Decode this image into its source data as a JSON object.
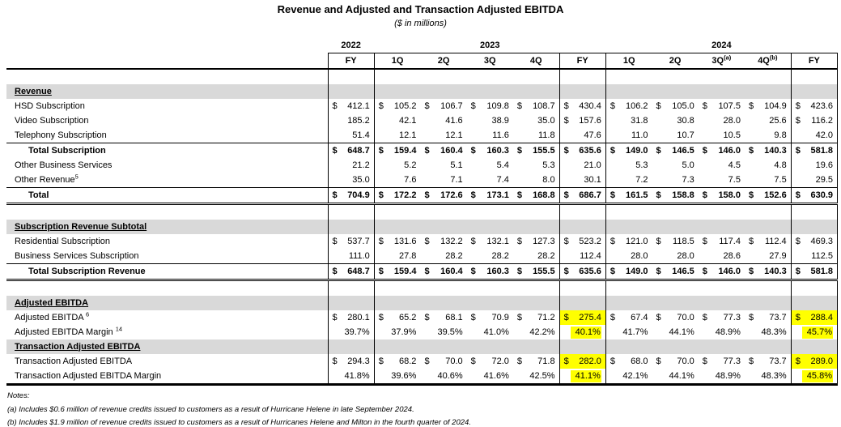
{
  "title": "Revenue and Adjusted and Transaction Adjusted EBITDA",
  "subtitle": "($ in millions)",
  "colors": {
    "section_band": "#d9d9d9",
    "highlight": "#ffff00"
  },
  "table": {
    "year_groups": [
      {
        "label": "2022",
        "span": 1
      },
      {
        "label": "2023",
        "span": 5
      },
      {
        "label": "2024",
        "span": 5
      }
    ],
    "quarter_headers": [
      {
        "label": "FY",
        "sup": ""
      },
      {
        "label": "1Q",
        "sup": ""
      },
      {
        "label": "2Q",
        "sup": ""
      },
      {
        "label": "3Q",
        "sup": ""
      },
      {
        "label": "4Q",
        "sup": ""
      },
      {
        "label": "FY",
        "sup": ""
      },
      {
        "label": "1Q",
        "sup": ""
      },
      {
        "label": "2Q",
        "sup": ""
      },
      {
        "label": "3Q",
        "sup": "(a)"
      },
      {
        "label": "4Q",
        "sup": "(b)"
      },
      {
        "label": "FY",
        "sup": ""
      }
    ],
    "rows": [
      {
        "type": "spacer"
      },
      {
        "type": "section",
        "label": "Revenue"
      },
      {
        "type": "data",
        "label": "HSD Subscription",
        "dollar": [
          1,
          1,
          1,
          1,
          1,
          1,
          1,
          1,
          1,
          1,
          1
        ],
        "values": [
          "412.1",
          "105.2",
          "106.7",
          "109.8",
          "108.7",
          "430.4",
          "106.2",
          "105.0",
          "107.5",
          "104.9",
          "423.6"
        ]
      },
      {
        "type": "data",
        "label": "Video Subscription",
        "dollar": [
          0,
          0,
          0,
          0,
          0,
          1,
          0,
          0,
          0,
          0,
          1
        ],
        "values": [
          "185.2",
          "42.1",
          "41.6",
          "38.9",
          "35.0",
          "157.6",
          "31.8",
          "30.8",
          "28.0",
          "25.6",
          "116.2"
        ]
      },
      {
        "type": "data",
        "label": "Telephony Subscription",
        "dollar": [
          0,
          0,
          0,
          0,
          0,
          0,
          0,
          0,
          0,
          0,
          0
        ],
        "values": [
          "51.4",
          "12.1",
          "12.1",
          "11.6",
          "11.8",
          "47.6",
          "11.0",
          "10.7",
          "10.5",
          "9.8",
          "42.0"
        ]
      },
      {
        "type": "data",
        "label": "Total Subscription",
        "indent": true,
        "bold": true,
        "border_top": true,
        "dollar": [
          1,
          1,
          1,
          1,
          1,
          1,
          1,
          1,
          1,
          1,
          1
        ],
        "values": [
          "648.7",
          "159.4",
          "160.4",
          "160.3",
          "155.5",
          "635.6",
          "149.0",
          "146.5",
          "146.0",
          "140.3",
          "581.8"
        ]
      },
      {
        "type": "data",
        "label": "Other Business Services",
        "dollar": [
          0,
          0,
          0,
          0,
          0,
          0,
          0,
          0,
          0,
          0,
          0
        ],
        "values": [
          "21.2",
          "5.2",
          "5.1",
          "5.4",
          "5.3",
          "21.0",
          "5.3",
          "5.0",
          "4.5",
          "4.8",
          "19.6"
        ]
      },
      {
        "type": "data",
        "label": "Other Revenue",
        "sup": "5",
        "dollar": [
          0,
          0,
          0,
          0,
          0,
          0,
          0,
          0,
          0,
          0,
          0
        ],
        "values": [
          "35.0",
          "7.6",
          "7.1",
          "7.4",
          "8.0",
          "30.1",
          "7.2",
          "7.3",
          "7.5",
          "7.5",
          "29.5"
        ]
      },
      {
        "type": "data",
        "label": "Total",
        "indent": true,
        "bold": true,
        "border_top": true,
        "border_bottom": "double",
        "dollar": [
          1,
          1,
          1,
          1,
          1,
          1,
          1,
          1,
          1,
          1,
          1
        ],
        "values": [
          "704.9",
          "172.2",
          "172.6",
          "173.1",
          "168.8",
          "686.7",
          "161.5",
          "158.8",
          "158.0",
          "152.6",
          "630.9"
        ]
      },
      {
        "type": "spacer"
      },
      {
        "type": "section",
        "label": "Subscription Revenue Subtotal"
      },
      {
        "type": "data",
        "label": "Residential Subscription",
        "dollar": [
          1,
          1,
          1,
          1,
          1,
          1,
          1,
          1,
          1,
          1,
          1
        ],
        "values": [
          "537.7",
          "131.6",
          "132.2",
          "132.1",
          "127.3",
          "523.2",
          "121.0",
          "118.5",
          "117.4",
          "112.4",
          "469.3"
        ]
      },
      {
        "type": "data",
        "label": "Business Services Subscription",
        "dollar": [
          0,
          0,
          0,
          0,
          0,
          0,
          0,
          0,
          0,
          0,
          0
        ],
        "values": [
          "111.0",
          "27.8",
          "28.2",
          "28.2",
          "28.2",
          "112.4",
          "28.0",
          "28.0",
          "28.6",
          "27.9",
          "112.5"
        ]
      },
      {
        "type": "data",
        "label": "Total Subscription Revenue",
        "indent": true,
        "bold": true,
        "border_top": true,
        "border_bottom": "double",
        "dollar": [
          1,
          1,
          1,
          1,
          1,
          1,
          1,
          1,
          1,
          1,
          1
        ],
        "values": [
          "648.7",
          "159.4",
          "160.4",
          "160.3",
          "155.5",
          "635.6",
          "149.0",
          "146.5",
          "146.0",
          "140.3",
          "581.8"
        ]
      },
      {
        "type": "spacer",
        "size": 8
      },
      {
        "type": "section",
        "label": "Adjusted EBITDA"
      },
      {
        "type": "data",
        "label": "Adjusted EBITDA ",
        "sup": "6",
        "dollar": [
          1,
          1,
          1,
          1,
          1,
          1,
          1,
          1,
          1,
          1,
          1
        ],
        "highlight": [
          5,
          10
        ],
        "values": [
          "280.1",
          "65.2",
          "68.1",
          "70.9",
          "71.2",
          "275.4",
          "67.4",
          "70.0",
          "77.3",
          "73.7",
          "288.4"
        ]
      },
      {
        "type": "data",
        "label": "Adjusted EBITDA Margin ",
        "sup": "14",
        "dollar": [
          0,
          0,
          0,
          0,
          0,
          0,
          0,
          0,
          0,
          0,
          0
        ],
        "highlight": [
          5,
          10
        ],
        "values": [
          "39.7%",
          "37.9%",
          "39.5%",
          "41.0%",
          "42.2%",
          "40.1%",
          "41.7%",
          "44.1%",
          "48.9%",
          "48.3%",
          "45.7%"
        ]
      },
      {
        "type": "section",
        "label": "Transaction Adjusted EBITDA"
      },
      {
        "type": "data",
        "label": "Transaction Adjusted EBITDA",
        "dollar": [
          1,
          1,
          1,
          1,
          1,
          1,
          1,
          1,
          1,
          1,
          1
        ],
        "highlight": [
          5,
          10
        ],
        "values": [
          "294.3",
          "68.2",
          "70.0",
          "72.0",
          "71.8",
          "282.0",
          "68.0",
          "70.0",
          "77.3",
          "73.7",
          "289.0"
        ]
      },
      {
        "type": "data",
        "label": "Transaction Adjusted EBITDA Margin",
        "dollar": [
          0,
          0,
          0,
          0,
          0,
          0,
          0,
          0,
          0,
          0,
          0
        ],
        "highlight": [
          5,
          10
        ],
        "values": [
          "41.8%",
          "39.6%",
          "40.6%",
          "41.6%",
          "42.5%",
          "41.1%",
          "42.1%",
          "44.1%",
          "48.9%",
          "48.3%",
          "45.8%"
        ]
      }
    ]
  },
  "notes": {
    "heading": "Notes:",
    "items": [
      "(a) Includes $0.6 million of revenue credits issued to customers as a result of Hurricane Helene in late September 2024.",
      "(b) Includes $1.9 million of revenue credits issued to customers as a result of Hurricanes Helene and Milton in the fourth quarter of 2024."
    ]
  }
}
